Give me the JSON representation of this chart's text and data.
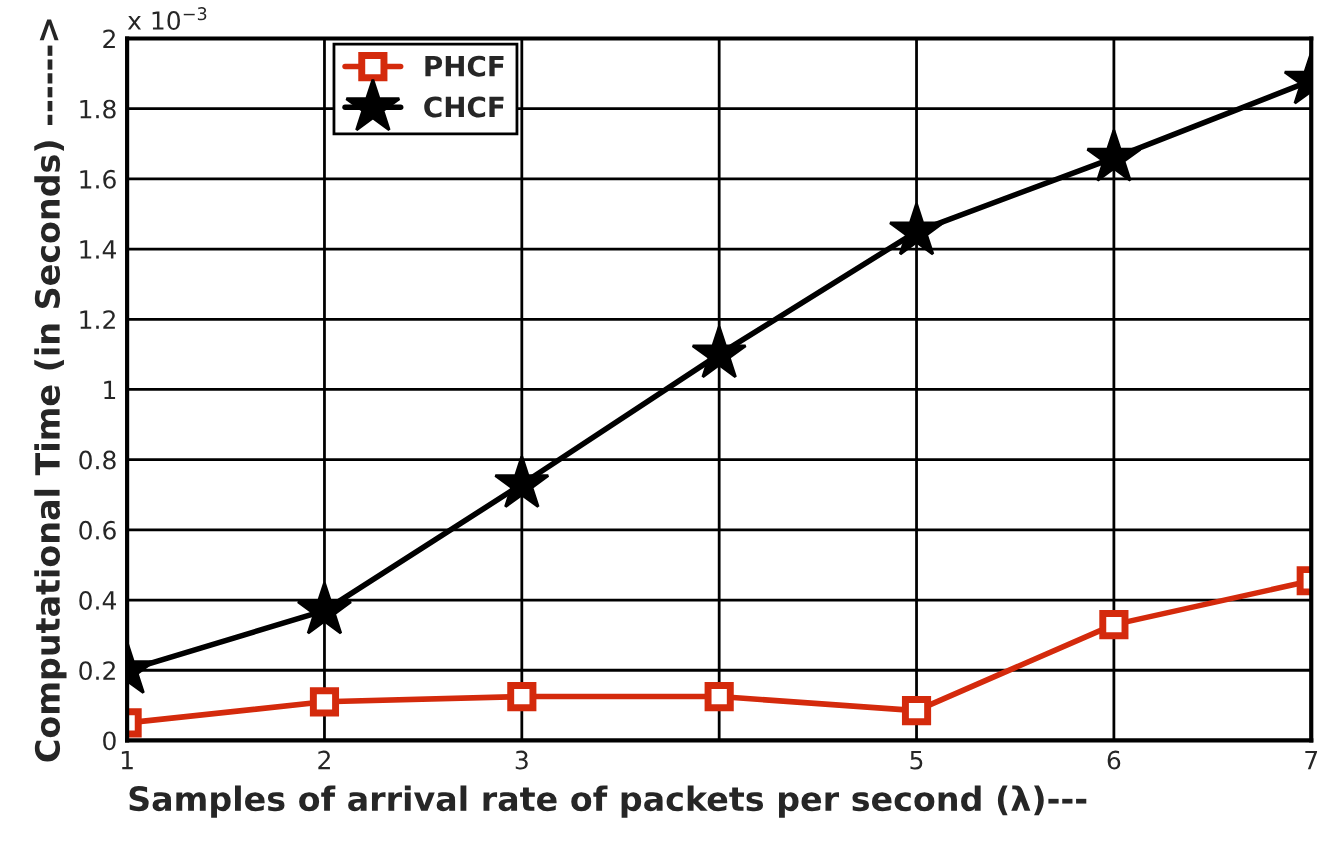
{
  "chart_data": {
    "type": "line",
    "xlabel": "Samples of arrival rate of packets per second (λ)---",
    "ylabel": "Computational Time (in Seconds) ------>",
    "x": [
      1,
      2,
      3,
      4,
      5,
      6,
      7
    ],
    "series": [
      {
        "name": "PHCF",
        "color": "#d42a0c",
        "marker": "square",
        "values": [
          0.05,
          0.11,
          0.125,
          0.125,
          0.085,
          0.33,
          0.455
        ]
      },
      {
        "name": "CHCF",
        "color": "#000000",
        "marker": "star",
        "values": [
          0.2,
          0.37,
          0.73,
          1.1,
          1.45,
          1.66,
          1.88
        ]
      }
    ],
    "xlim": [
      1,
      7
    ],
    "xticks": [
      1,
      2,
      3,
      {
        "value": 4,
        "label": null
      },
      5,
      6,
      7
    ],
    "ylim": [
      0,
      2
    ],
    "yticks": [
      0,
      0.2,
      0.4,
      0.6,
      0.8,
      1,
      1.2,
      1.4,
      1.6,
      1.8,
      2
    ],
    "annotations": [
      "x 10$^{−3}$"
    ],
    "grid": true,
    "legend": "top left",
    "line_style": "solid"
  }
}
